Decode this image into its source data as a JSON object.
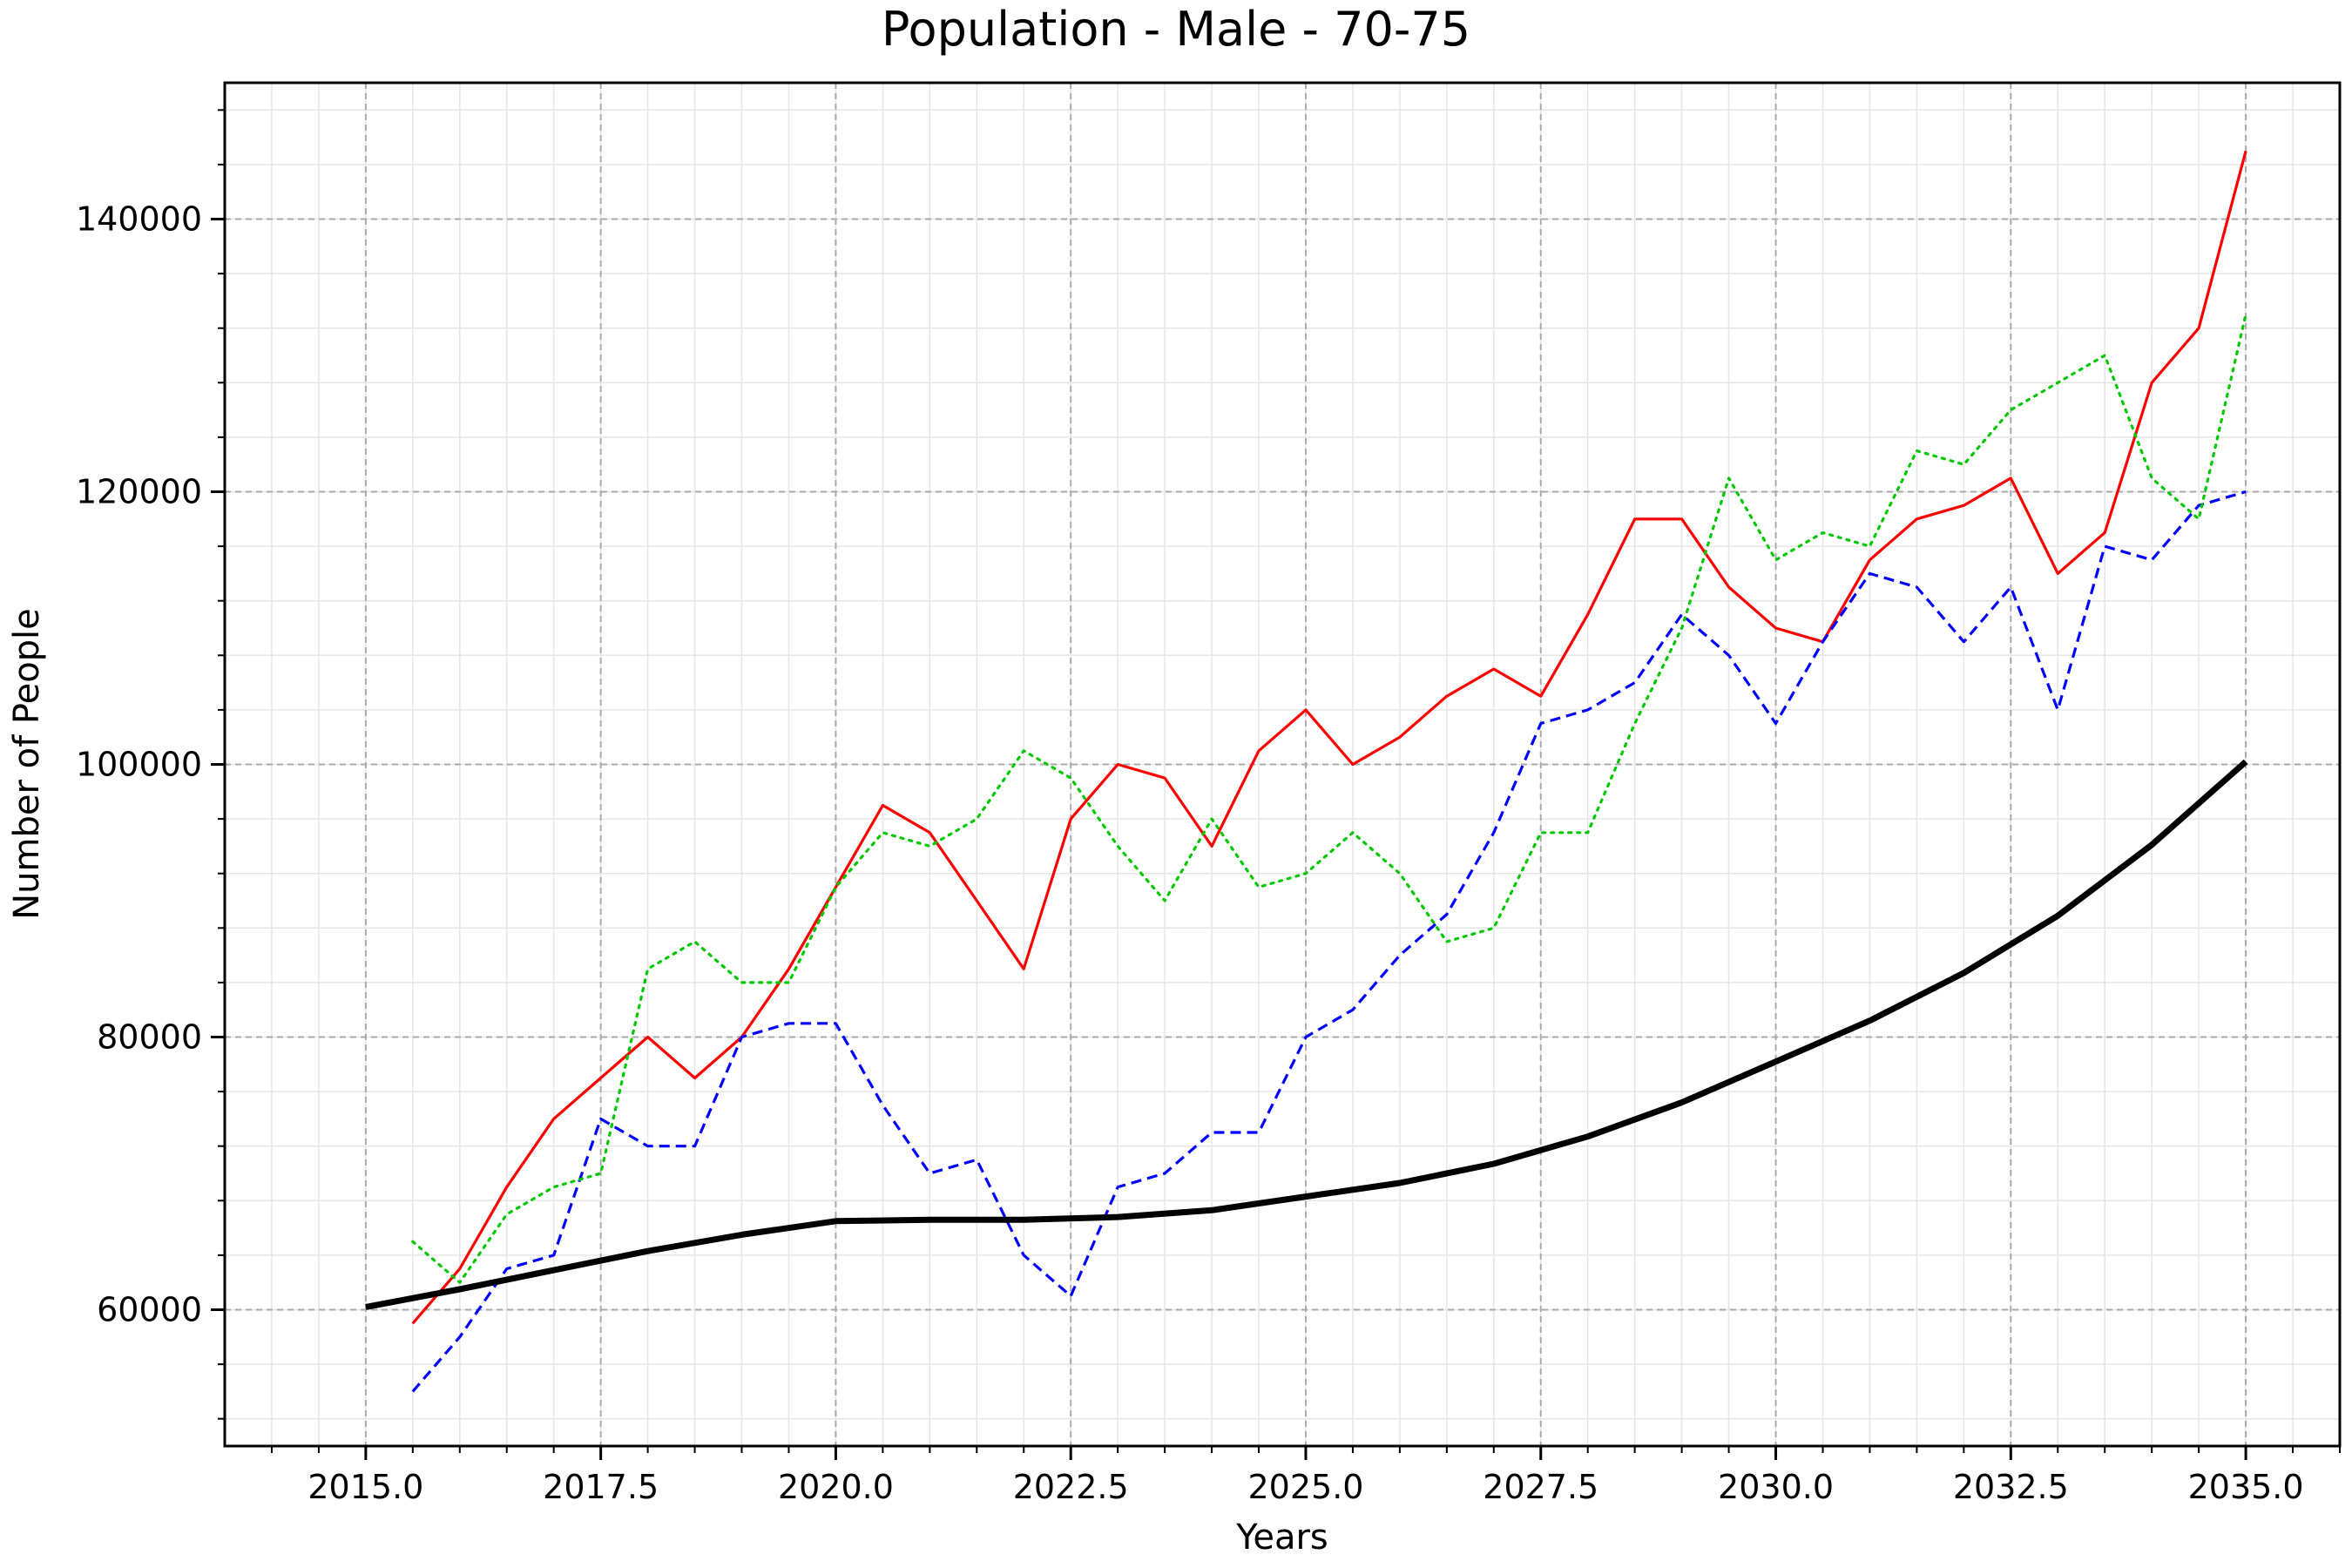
{
  "chart_data": {
    "type": "line",
    "title": "Population - Male - 70-75",
    "xlabel": "Years",
    "ylabel": "Number of People",
    "xlim": [
      2013.5,
      2036.0
    ],
    "ylim": [
      50000,
      150000
    ],
    "x_ticks": [
      2015.0,
      2017.5,
      2020.0,
      2022.5,
      2025.0,
      2027.5,
      2030.0,
      2032.5,
      2035.0
    ],
    "x_tick_labels": [
      "2015.0",
      "2017.5",
      "2020.0",
      "2022.5",
      "2025.0",
      "2027.5",
      "2030.0",
      "2032.5",
      "2035.0"
    ],
    "y_ticks": [
      60000,
      80000,
      100000,
      120000,
      140000
    ],
    "y_tick_labels": [
      "60000",
      "80000",
      "100000",
      "120000",
      "140000"
    ],
    "grid": true,
    "series": [
      {
        "color": "#ff0000",
        "style": "solid",
        "x": [
          2015.5,
          2016,
          2016.5,
          2017,
          2017.5,
          2018,
          2018.5,
          2019,
          2019.5,
          2020,
          2020.5,
          2021,
          2021.5,
          2022,
          2022.5,
          2023,
          2023.5,
          2024,
          2024.5,
          2025,
          2025.5,
          2026,
          2026.5,
          2027,
          2027.5,
          2028,
          2028.5,
          2029,
          2029.5,
          2030,
          2030.5,
          2031,
          2031.5,
          2032,
          2032.5,
          2033,
          2033.5,
          2034,
          2034.5,
          2035
        ],
        "y": [
          59000,
          63000,
          69000,
          74000,
          77000,
          80000,
          77000,
          80000,
          85000,
          91000,
          97000,
          95000,
          90000,
          85000,
          96000,
          100000,
          99000,
          94000,
          101000,
          104000,
          100000,
          102000,
          105000,
          107000,
          105000,
          111000,
          118000,
          118000,
          113000,
          110000,
          109000,
          115000,
          118000,
          119000,
          121000,
          114000,
          117000,
          128000,
          132000,
          145000
        ]
      },
      {
        "color": "#0000ff",
        "style": "dashed",
        "x": [
          2015.5,
          2016,
          2016.5,
          2017,
          2017.5,
          2018,
          2018.5,
          2019,
          2019.5,
          2020,
          2020.5,
          2021,
          2021.5,
          2022,
          2022.5,
          2023,
          2023.5,
          2024,
          2024.5,
          2025,
          2025.5,
          2026,
          2026.5,
          2027,
          2027.5,
          2028,
          2028.5,
          2029,
          2029.5,
          2030,
          2030.5,
          2031,
          2031.5,
          2032,
          2032.5,
          2033,
          2033.5,
          2034,
          2034.5,
          2035
        ],
        "y": [
          54000,
          58000,
          63000,
          64000,
          74000,
          72000,
          72000,
          80000,
          81000,
          81000,
          75000,
          70000,
          71000,
          64000,
          61000,
          69000,
          70000,
          73000,
          73000,
          80000,
          82000,
          86000,
          89000,
          95000,
          103000,
          104000,
          106000,
          111000,
          108000,
          103000,
          109000,
          114000,
          113000,
          109000,
          113000,
          104000,
          116000,
          115000,
          119000,
          120000
        ]
      },
      {
        "color": "#00c800",
        "style": "dotted",
        "x": [
          2015.5,
          2016,
          2016.5,
          2017,
          2017.5,
          2018,
          2018.5,
          2019,
          2019.5,
          2020,
          2020.5,
          2021,
          2021.5,
          2022,
          2022.5,
          2023,
          2023.5,
          2024,
          2024.5,
          2025,
          2025.5,
          2026,
          2026.5,
          2027,
          2027.5,
          2028,
          2028.5,
          2029,
          2029.5,
          2030,
          2030.5,
          2031,
          2031.5,
          2032,
          2032.5,
          2033,
          2033.5,
          2034,
          2034.5,
          2035
        ],
        "y": [
          65000,
          62000,
          67000,
          69000,
          70000,
          85000,
          87000,
          84000,
          84000,
          91000,
          95000,
          94000,
          96000,
          101000,
          99000,
          94000,
          90000,
          96000,
          91000,
          92000,
          95000,
          92000,
          87000,
          88000,
          95000,
          95000,
          103000,
          110000,
          121000,
          115000,
          117000,
          116000,
          123000,
          122000,
          126000,
          128000,
          130000,
          121000,
          118000,
          133000
        ]
      },
      {
        "color": "#000000",
        "style": "solid-thick",
        "x": [
          2015,
          2016,
          2017,
          2018,
          2019,
          2020,
          2021,
          2022,
          2023,
          2024,
          2025,
          2026,
          2027,
          2028,
          2029,
          2030,
          2031,
          2032,
          2033,
          2034,
          2035
        ],
        "y": [
          60200,
          61500,
          62900,
          64300,
          65500,
          66500,
          66600,
          66600,
          66800,
          67300,
          68300,
          69300,
          70700,
          72700,
          75200,
          78200,
          81200,
          84700,
          88900,
          94100,
          100200
        ]
      }
    ]
  }
}
